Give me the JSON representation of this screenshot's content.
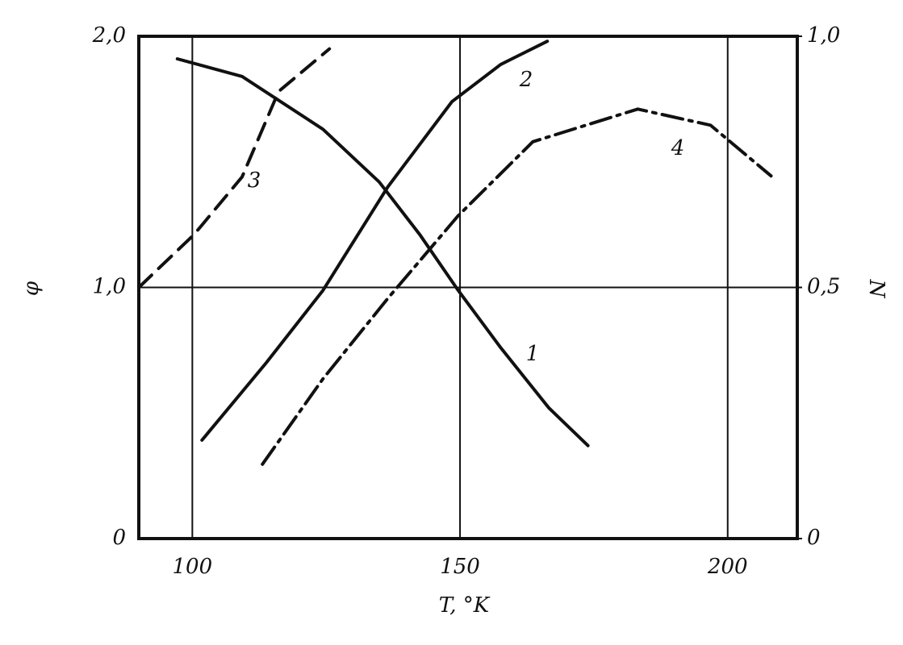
{
  "chart_data": {
    "type": "line",
    "xlabel": "T, °K",
    "ylabel": "φ",
    "y2label": "N",
    "xlim": [
      90,
      213
    ],
    "xticks": [
      100,
      150,
      200
    ],
    "ylim": [
      0,
      2
    ],
    "yticks": [
      0,
      {
        "value": 1,
        "label": "1,0"
      },
      {
        "value": 2,
        "label": "2,0"
      }
    ],
    "y2lim": [
      0,
      1
    ],
    "y2ticks": [
      0,
      {
        "value": 0.5,
        "label": "0,5"
      },
      {
        "value": 1,
        "label": "1,0"
      }
    ],
    "grid": true,
    "series": [
      {
        "name": "1",
        "color": "#111111",
        "style": "solid",
        "x": [
          97.2,
          109.3,
          124.4,
          134.9,
          142.5,
          149.6,
          157.6,
          166.6,
          173.9
        ],
        "values": [
          1.91,
          1.84,
          1.63,
          1.42,
          1.21,
          0.99,
          0.76,
          0.52,
          0.37
        ]
      },
      {
        "name": "2",
        "color": "#111111",
        "style": "solid",
        "axis": "y2",
        "x": [
          101.8,
          113.8,
          124.4,
          136.5,
          148.5,
          157.6,
          166.3
        ],
        "values": [
          0.196,
          0.35,
          0.494,
          0.7,
          0.87,
          0.944,
          0.99
        ]
      },
      {
        "name": "3",
        "color": "#111111",
        "style": "dashed",
        "x": [
          90,
          100.3,
          109.3,
          116.1,
          125.6
        ],
        "values": [
          1.0,
          1.21,
          1.44,
          1.78,
          1.95
        ]
      },
      {
        "name": "4",
        "color": "#111111",
        "style": "dashdot",
        "axis": "y2",
        "x": [
          113.1,
          124.4,
          136.5,
          149.6,
          163.6,
          183.2,
          196.8,
          208.1
        ],
        "values": [
          0.148,
          0.318,
          0.478,
          0.642,
          0.79,
          0.855,
          0.823,
          0.722
        ]
      }
    ]
  }
}
